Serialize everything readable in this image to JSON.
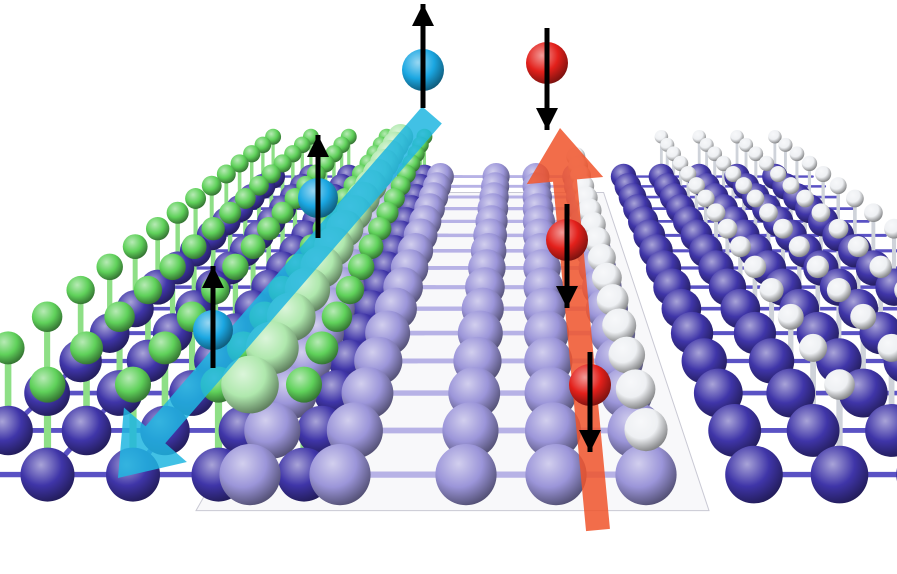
{
  "colors": {
    "background": "#ffffff",
    "substrate_atom": "#3f35a8",
    "substrate_atom_light": "#6c63d6",
    "substrate_bond": "#5a52c4",
    "channel_atom": "#9b95d9",
    "channel_bond": "#b7b2e6",
    "left_terminal_atom": "#5fd15a",
    "left_terminal_bond": "#8edf86",
    "right_terminal_atom": "#eef0f3",
    "right_terminal_bond": "#cfd3da",
    "spin_up_carrier": "#1ba7e2",
    "spin_down_carrier": "#e3201b",
    "spin_up_path_arrow": "#20b6e0",
    "spin_down_path_arrow": "#f0542a",
    "spin_vector": "#000000",
    "channel_plane": "#f2f2f6"
  },
  "icons": {
    "spin_up": "arrow-up-icon",
    "spin_down": "arrow-down-icon"
  }
}
